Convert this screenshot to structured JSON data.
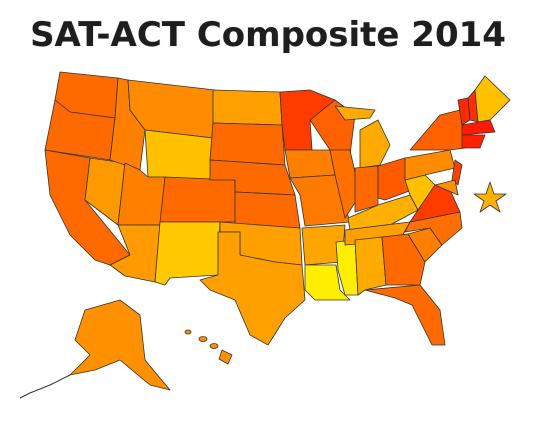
{
  "header": {
    "title": "SAT-ACT Composite 2014"
  }
}
